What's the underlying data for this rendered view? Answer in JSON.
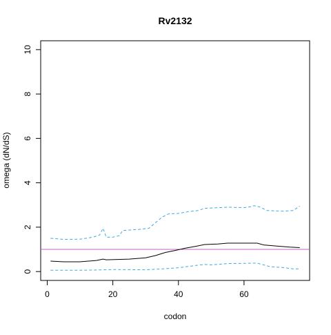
{
  "chart_data": {
    "type": "line",
    "title": "Rv2132",
    "xlabel": "codon",
    "ylabel": "omega (dN/dS)",
    "xlim": [
      -2,
      80
    ],
    "ylim": [
      -0.4,
      10.4
    ],
    "xticks": [
      0,
      20,
      40,
      60
    ],
    "yticks": [
      0,
      2,
      4,
      6,
      8,
      10
    ],
    "series": [
      {
        "color": "#000000",
        "dashed": false,
        "x": [
          1,
          5,
          10,
          15,
          17,
          18,
          25,
          30,
          33,
          36,
          39,
          42,
          45,
          48,
          52,
          55,
          60,
          64,
          66,
          70,
          74,
          77
        ],
        "values": [
          0.47,
          0.44,
          0.44,
          0.5,
          0.56,
          0.53,
          0.56,
          0.62,
          0.72,
          0.86,
          0.95,
          1.05,
          1.13,
          1.22,
          1.24,
          1.28,
          1.28,
          1.28,
          1.2,
          1.15,
          1.1,
          1.08
        ]
      },
      {
        "color": "#3fa9e0",
        "dashed": true,
        "x": [
          1,
          5,
          10,
          14,
          16,
          17,
          18,
          20,
          22,
          23,
          28,
          31,
          33,
          35,
          37,
          40,
          43,
          46,
          48,
          55,
          60,
          62,
          63,
          65,
          67,
          72,
          75,
          77
        ],
        "values": [
          1.5,
          1.45,
          1.46,
          1.55,
          1.65,
          1.95,
          1.55,
          1.55,
          1.62,
          1.85,
          1.9,
          1.95,
          2.2,
          2.45,
          2.6,
          2.62,
          2.7,
          2.75,
          2.85,
          2.9,
          2.88,
          2.92,
          2.97,
          2.9,
          2.75,
          2.72,
          2.75,
          2.95
        ]
      },
      {
        "color": "#3fa9e0",
        "dashed": true,
        "x": [
          1,
          10,
          15,
          20,
          30,
          35,
          40,
          45,
          48,
          50,
          55,
          60,
          64,
          66,
          68,
          72,
          75,
          77
        ],
        "values": [
          0.06,
          0.06,
          0.07,
          0.09,
          0.08,
          0.12,
          0.17,
          0.27,
          0.32,
          0.3,
          0.36,
          0.37,
          0.38,
          0.3,
          0.22,
          0.18,
          0.12,
          0.12
        ]
      }
    ],
    "hlines": [
      {
        "value": 1,
        "color": "#c060c0"
      }
    ]
  }
}
